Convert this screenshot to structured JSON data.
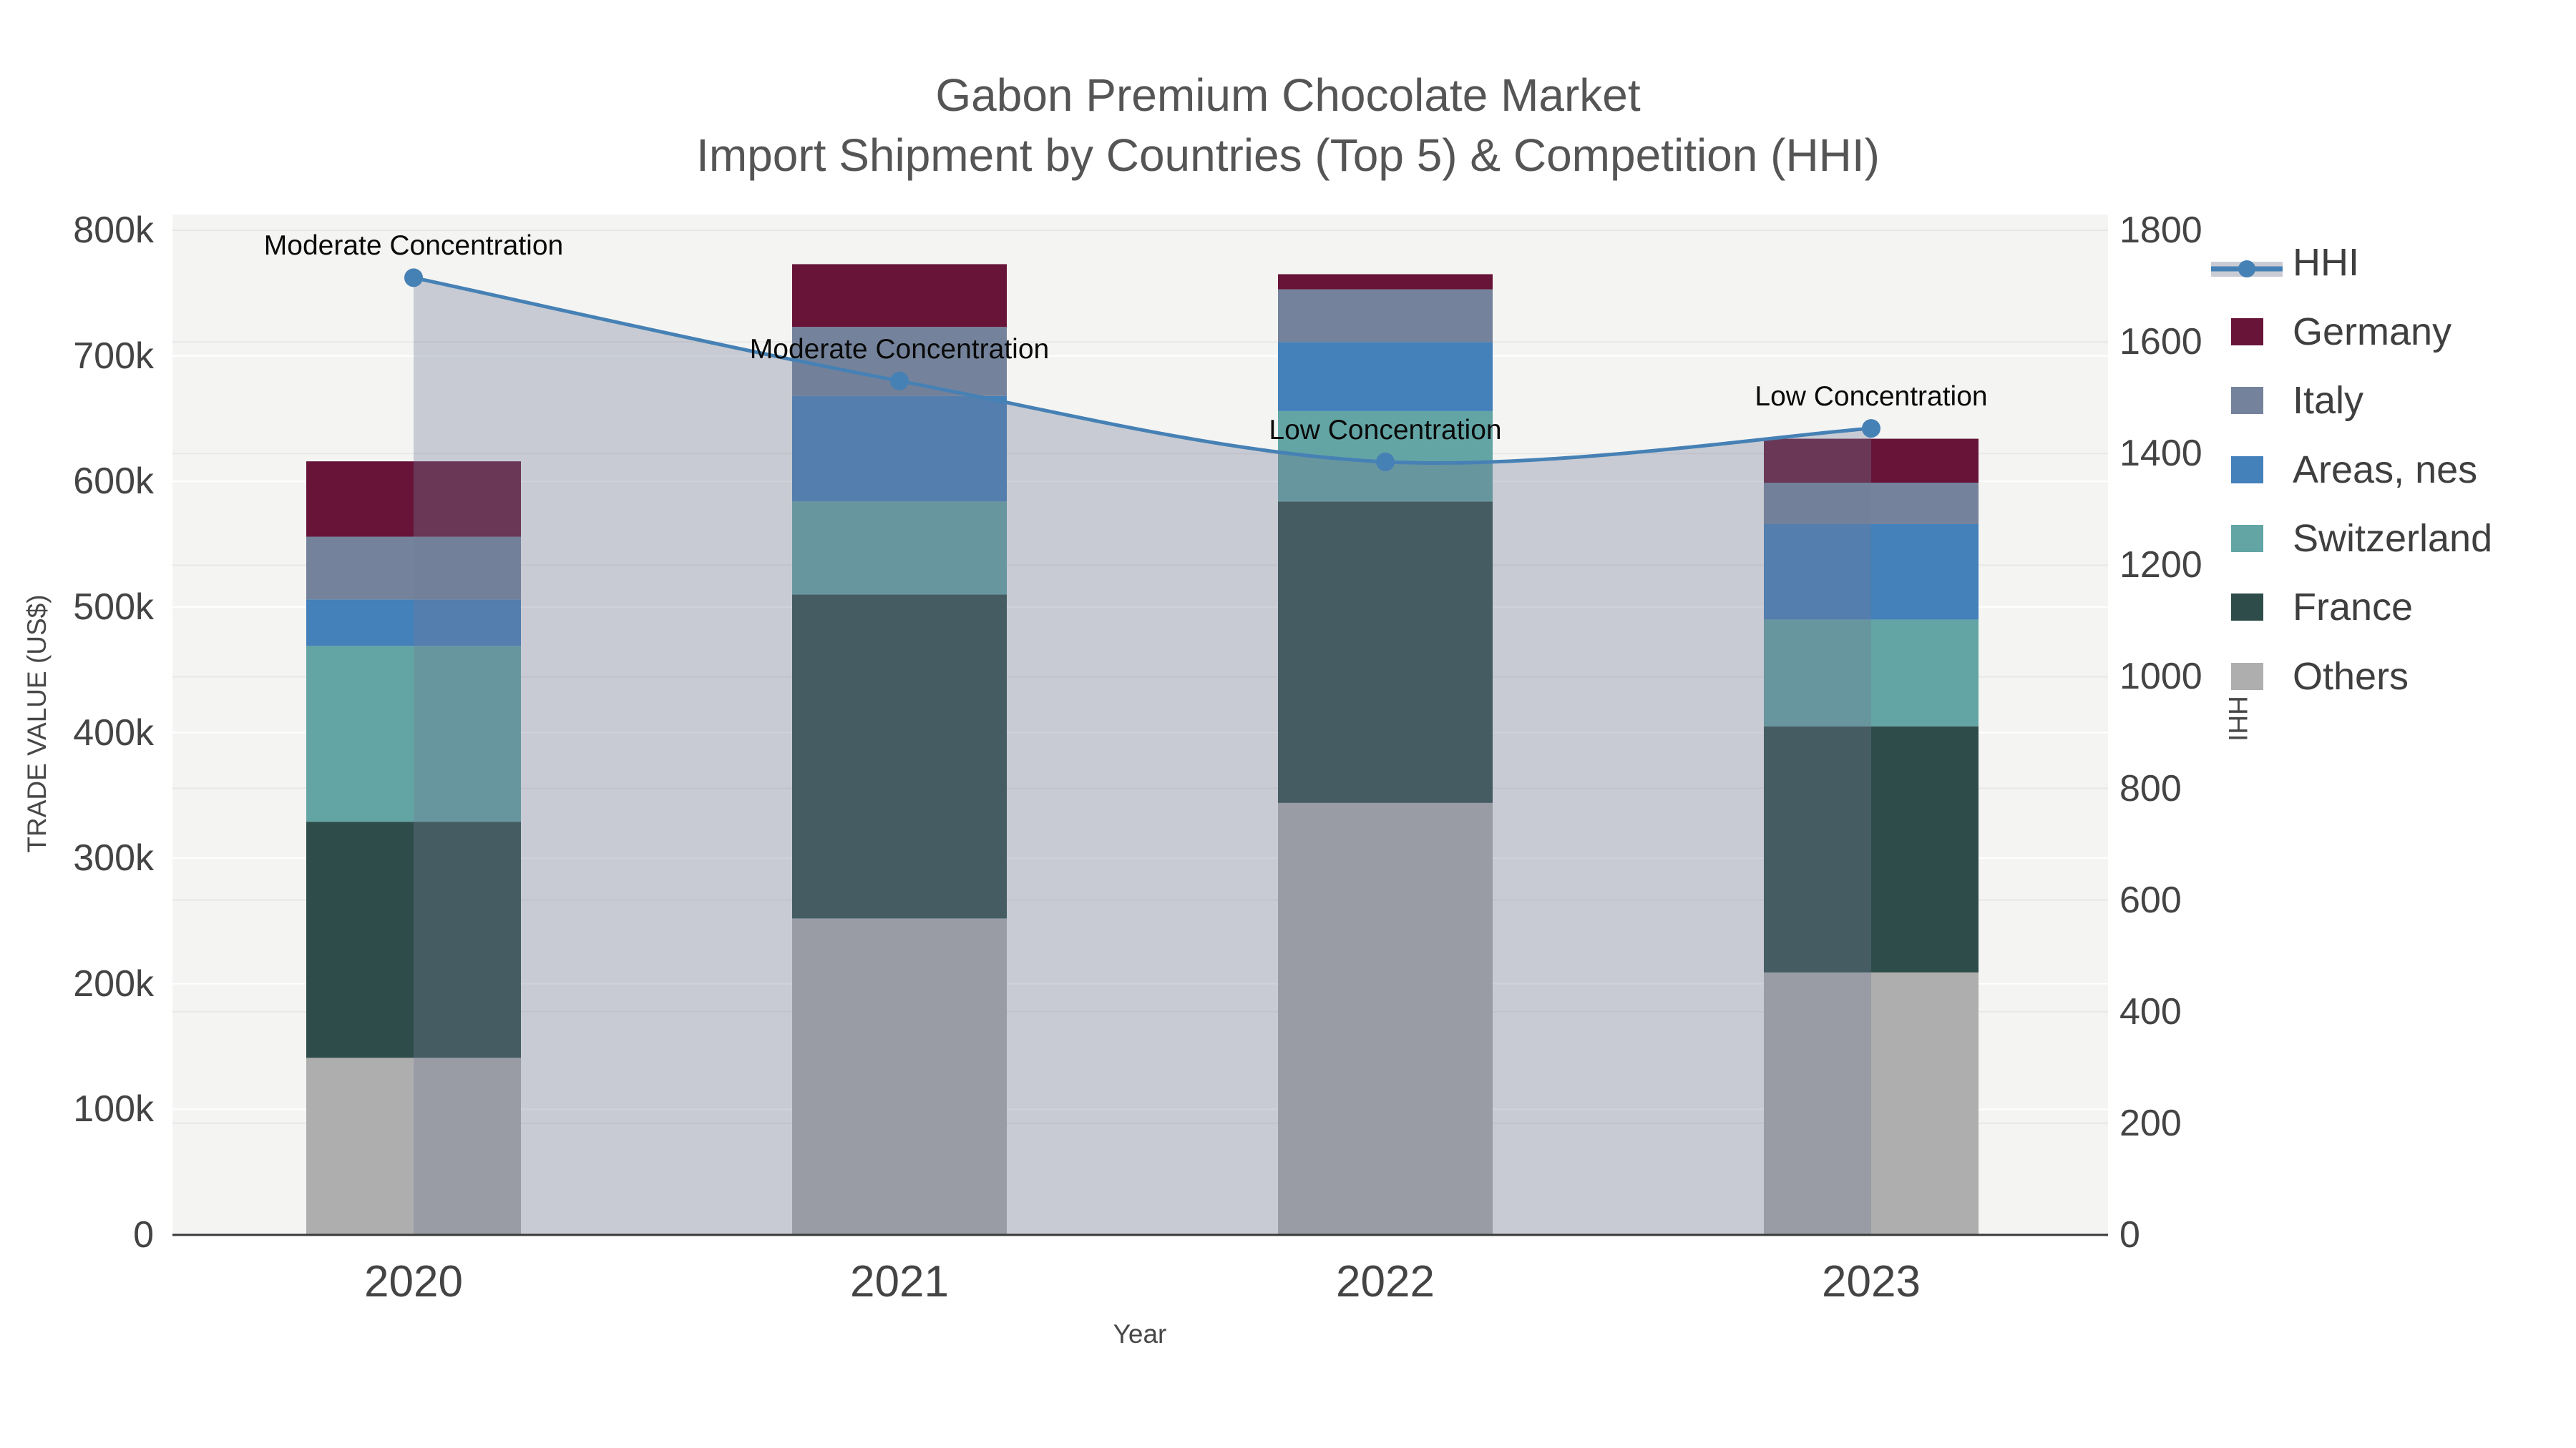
{
  "title": {
    "line1": "Gabon Premium Chocolate Market",
    "line2": "Import Shipment by Countries (Top 5) & Competition (HHI)"
  },
  "chart_data": {
    "type": "combo-stacked-bar-and-line",
    "categories": [
      "2020",
      "2021",
      "2022",
      "2023"
    ],
    "series": [
      {
        "name": "Others",
        "color": "#aeaeae",
        "values": [
          141000,
          252000,
          344000,
          209000
        ]
      },
      {
        "name": "France",
        "color": "#2e4d4a",
        "values": [
          188000,
          258000,
          240000,
          196000
        ]
      },
      {
        "name": "Switzerland",
        "color": "#63a5a5",
        "values": [
          140000,
          74000,
          72000,
          85000
        ]
      },
      {
        "name": "Areas, nes",
        "color": "#4480ba",
        "values": [
          37000,
          84000,
          55000,
          76000
        ]
      },
      {
        "name": "Italy",
        "color": "#74839b",
        "values": [
          50000,
          55000,
          42000,
          33000
        ]
      },
      {
        "name": "Germany",
        "color": "#671438",
        "values": [
          60000,
          50000,
          12000,
          35000
        ]
      }
    ],
    "line_series": {
      "name": "HHI",
      "color": "#4681b5",
      "area_fill_color": "rgba(115,124,150,0.34)",
      "values": [
        1715,
        1530,
        1385,
        1445
      ]
    },
    "annotations": [
      {
        "category": "2020",
        "text": "Moderate Concentration"
      },
      {
        "category": "2021",
        "text": "Moderate Concentration"
      },
      {
        "category": "2022",
        "text": "Low Concentration"
      },
      {
        "category": "2023",
        "text": "Low Concentration"
      }
    ],
    "left_axis": {
      "title": "TRADE VALUE (US$)",
      "min": 0,
      "max": 800000,
      "ticks": [
        {
          "v": 0,
          "label": "0"
        },
        {
          "v": 100000,
          "label": "100k"
        },
        {
          "v": 200000,
          "label": "200k"
        },
        {
          "v": 300000,
          "label": "300k"
        },
        {
          "v": 400000,
          "label": "400k"
        },
        {
          "v": 500000,
          "label": "500k"
        },
        {
          "v": 600000,
          "label": "600k"
        },
        {
          "v": 700000,
          "label": "700k"
        },
        {
          "v": 800000,
          "label": "800k"
        }
      ]
    },
    "right_axis": {
      "title": "HHI",
      "min": 0,
      "max": 1800,
      "ticks": [
        {
          "v": 0,
          "label": "0"
        },
        {
          "v": 200,
          "label": "200"
        },
        {
          "v": 400,
          "label": "400"
        },
        {
          "v": 600,
          "label": "600"
        },
        {
          "v": 800,
          "label": "800"
        },
        {
          "v": 1000,
          "label": "1000"
        },
        {
          "v": 1200,
          "label": "1200"
        },
        {
          "v": 1400,
          "label": "1400"
        },
        {
          "v": 1600,
          "label": "1600"
        },
        {
          "v": 1800,
          "label": "1800"
        }
      ]
    },
    "x_axis": {
      "title": "Year"
    },
    "legend_position": "right",
    "grid": true
  },
  "legend": {
    "items": [
      {
        "label": "HHI",
        "type": "line",
        "color": "#4681b5",
        "band_color": "#c9ccd4"
      },
      {
        "label": "Germany",
        "type": "square",
        "color": "#671438"
      },
      {
        "label": "Italy",
        "type": "square",
        "color": "#74839b"
      },
      {
        "label": "Areas, nes",
        "type": "square",
        "color": "#4480ba"
      },
      {
        "label": "Switzerland",
        "type": "square",
        "color": "#63a5a5"
      },
      {
        "label": "France",
        "type": "square",
        "color": "#2e4d4a"
      },
      {
        "label": "Others",
        "type": "square",
        "color": "#aeaeae"
      }
    ]
  },
  "style": {
    "plot_bg": "#f4f4f3",
    "grid_left_color": "#ffffff",
    "grid_right_color": "#e8e8e7",
    "axis_line_color": "#3a3a3a"
  }
}
